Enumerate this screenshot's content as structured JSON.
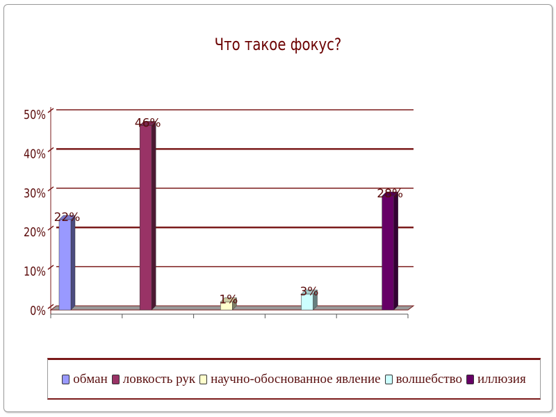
{
  "chart_data": {
    "type": "bar",
    "title": "Что такое фокус?",
    "categories": [
      "обман",
      "ловкость рук",
      "научно-обоснованное явление",
      "волшебство",
      "иллюзия"
    ],
    "series": [
      {
        "name": "обман",
        "value": 22,
        "label": "22%",
        "color": "#9999ff"
      },
      {
        "name": "ловкость рук",
        "value": 46,
        "label": "46%",
        "color": "#993366"
      },
      {
        "name": "научно-обоснованное явление",
        "value": 1,
        "label": "1%",
        "color": "#ffffcc"
      },
      {
        "name": "волшебство",
        "value": 3,
        "label": "3%",
        "color": "#ccffff"
      },
      {
        "name": "иллюзия",
        "value": 28,
        "label": "28%",
        "color": "#660066"
      }
    ],
    "yticks": [
      "0%",
      "10%",
      "20%",
      "30%",
      "40%",
      "50%"
    ],
    "ylim": [
      0,
      50
    ],
    "grid": true,
    "legend_position": "bottom",
    "three_d": true,
    "gridline_color": "#7a1a1a"
  }
}
